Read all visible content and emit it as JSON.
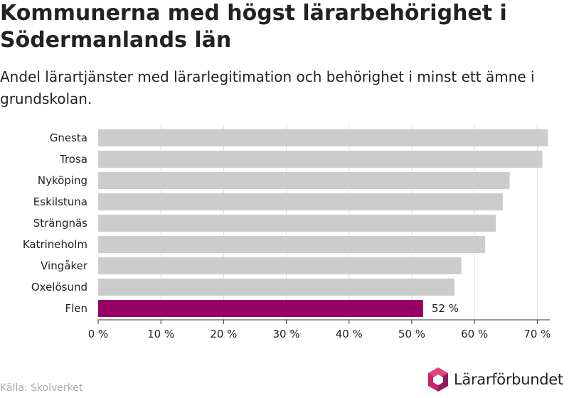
{
  "title": "Kommunerna med högst lärarbehörighet i Södermanlands län",
  "subtitle": "Andel lärartjänster med lärarlegitimation och behörighet i minst ett ämne i grundskolan.",
  "source": "Källa: Skolverket",
  "logo": {
    "name": "Lärarförbundet",
    "icon": "lararforbundet-hexagon-logo"
  },
  "colors": {
    "bar": "#cccccc",
    "highlight": "#990066",
    "grid": "#dddddd",
    "axis": "#333333",
    "text": "#222222",
    "source": "#aaaaaa"
  },
  "chart_data": {
    "type": "bar",
    "orientation": "horizontal",
    "categories": [
      "Gnesta",
      "Trosa",
      "Nyköping",
      "Eskilstuna",
      "Strängnäs",
      "Katrineholm",
      "Vingåker",
      "Oxelösund",
      "Flen"
    ],
    "values": [
      71.7,
      70.8,
      65.6,
      64.5,
      63.4,
      61.7,
      57.9,
      56.8,
      51.8
    ],
    "highlight_category": "Flen",
    "data_labels": [
      "",
      "",
      "",
      "",
      "",
      "",
      "",
      "",
      "52 %"
    ],
    "xlim": [
      0,
      72
    ],
    "xticks": [
      0,
      10,
      20,
      30,
      40,
      50,
      60,
      70
    ],
    "xtick_labels": [
      "0 %",
      "10 %",
      "20 %",
      "30 %",
      "40 %",
      "50 %",
      "60 %",
      "70 %"
    ],
    "grid": true,
    "legend": "none"
  }
}
